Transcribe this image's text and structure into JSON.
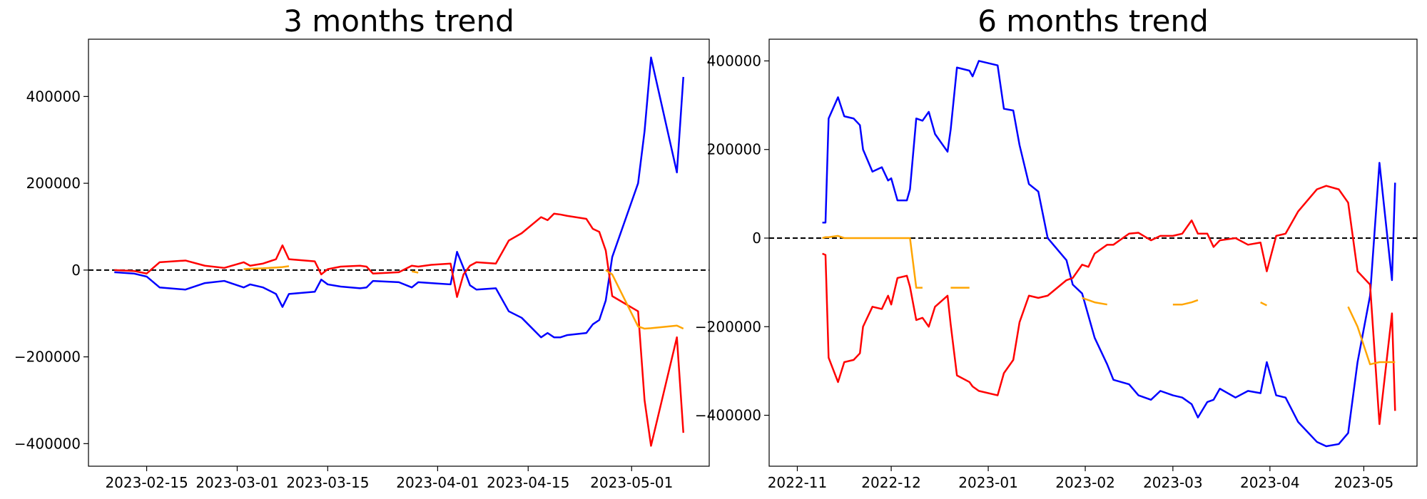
{
  "chart_data": [
    {
      "type": "line",
      "title": "3 months trend",
      "x": [
        "2023-02-10",
        "2023-02-13",
        "2023-02-15",
        "2023-02-17",
        "2023-02-21",
        "2023-02-24",
        "2023-02-27",
        "2023-03-02",
        "2023-03-03",
        "2023-03-05",
        "2023-03-07",
        "2023-03-08",
        "2023-03-09",
        "2023-03-13",
        "2023-03-14",
        "2023-03-15",
        "2023-03-17",
        "2023-03-20",
        "2023-03-21",
        "2023-03-22",
        "2023-03-26",
        "2023-03-28",
        "2023-03-29",
        "2023-03-31",
        "2023-04-03",
        "2023-04-04",
        "2023-04-05",
        "2023-04-06",
        "2023-04-07",
        "2023-04-10",
        "2023-04-12",
        "2023-04-14",
        "2023-04-17",
        "2023-04-18",
        "2023-04-19",
        "2023-04-20",
        "2023-04-21",
        "2023-04-24",
        "2023-04-25",
        "2023-04-26",
        "2023-04-27",
        "2023-04-28",
        "2023-05-02",
        "2023-05-03",
        "2023-05-04",
        "2023-05-08",
        "2023-05-09"
      ],
      "series": [
        {
          "color": "#0000ff",
          "values": [
            -5000,
            -8000,
            -15000,
            -40000,
            -45000,
            -30000,
            -25000,
            -40000,
            -33000,
            -40000,
            -55000,
            -85000,
            -55000,
            -50000,
            -22000,
            -33000,
            -38000,
            -42000,
            -40000,
            -25000,
            -28000,
            -40000,
            -28000,
            -30000,
            -33000,
            42000,
            5000,
            -35000,
            -45000,
            -42000,
            -95000,
            -110000,
            -155000,
            -145000,
            -155000,
            -155000,
            -150000,
            -145000,
            -125000,
            -115000,
            -70000,
            30000,
            200000,
            320000,
            490000,
            225000,
            445000
          ]
        },
        {
          "color": "#ff0000",
          "values": [
            0,
            -2000,
            -8000,
            18000,
            22000,
            10000,
            5000,
            18000,
            10000,
            15000,
            25000,
            57000,
            25000,
            20000,
            -10000,
            2000,
            8000,
            10000,
            8000,
            -8000,
            -5000,
            10000,
            8000,
            12000,
            15000,
            -62000,
            -10000,
            10000,
            18000,
            15000,
            68000,
            85000,
            122000,
            115000,
            130000,
            128000,
            125000,
            118000,
            95000,
            88000,
            45000,
            -60000,
            -95000,
            -300000,
            -405000,
            -155000,
            -375000
          ]
        },
        {
          "color": "#ffa500",
          "values": [
            null,
            null,
            null,
            null,
            null,
            null,
            null,
            2000,
            3000,
            4000,
            6000,
            7000,
            9000,
            null,
            null,
            null,
            null,
            null,
            null,
            null,
            null,
            -3000,
            -6000,
            null,
            null,
            null,
            null,
            null,
            null,
            null,
            null,
            null,
            null,
            null,
            null,
            null,
            null,
            null,
            null,
            null,
            0,
            -10000,
            -130000,
            -135000,
            -134000,
            -128000,
            -135000
          ]
        }
      ],
      "xlim": [
        "2023-02-06",
        "2023-05-13"
      ],
      "ylim": [
        -452000,
        532000
      ],
      "xticks": [
        "2023-02-15",
        "2023-03-01",
        "2023-03-15",
        "2023-04-01",
        "2023-04-15",
        "2023-05-01"
      ],
      "yticks": [
        {
          "value": -400000,
          "label": "−400000"
        },
        {
          "value": -200000,
          "label": "−200000"
        },
        0,
        200000,
        400000
      ],
      "reference_line": 0
    },
    {
      "type": "line",
      "title": "6 months trend",
      "x": [
        "2022-11-09",
        "2022-11-10",
        "2022-11-11",
        "2022-11-14",
        "2022-11-16",
        "2022-11-19",
        "2022-11-21",
        "2022-11-22",
        "2022-11-25",
        "2022-11-28",
        "2022-11-30",
        "2022-12-01",
        "2022-12-03",
        "2022-12-06",
        "2022-12-07",
        "2022-12-09",
        "2022-12-11",
        "2022-12-13",
        "2022-12-15",
        "2022-12-19",
        "2022-12-20",
        "2022-12-22",
        "2022-12-26",
        "2022-12-27",
        "2022-12-29",
        "2023-01-04",
        "2023-01-06",
        "2023-01-09",
        "2023-01-11",
        "2023-01-14",
        "2023-01-17",
        "2023-01-20",
        "2023-01-26",
        "2023-01-28",
        "2023-01-31",
        "2023-02-02",
        "2023-02-04",
        "2023-02-08",
        "2023-02-10",
        "2023-02-15",
        "2023-02-18",
        "2023-02-22",
        "2023-02-25",
        "2023-03-01",
        "2023-03-04",
        "2023-03-07",
        "2023-03-09",
        "2023-03-12",
        "2023-03-14",
        "2023-03-16",
        "2023-03-21",
        "2023-03-25",
        "2023-03-29",
        "2023-03-31",
        "2023-04-03",
        "2023-04-06",
        "2023-04-10",
        "2023-04-16",
        "2023-04-19",
        "2023-04-23",
        "2023-04-26",
        "2023-04-29",
        "2023-05-03",
        "2023-05-06",
        "2023-05-10",
        "2023-05-11"
      ],
      "series": [
        {
          "color": "#0000ff",
          "values": [
            35000,
            35000,
            270000,
            318000,
            275000,
            270000,
            255000,
            200000,
            150000,
            160000,
            130000,
            135000,
            85000,
            85000,
            110000,
            270000,
            265000,
            285000,
            235000,
            195000,
            245000,
            385000,
            378000,
            365000,
            400000,
            390000,
            292000,
            288000,
            210000,
            122000,
            105000,
            0,
            -50000,
            -105000,
            -125000,
            -175000,
            -225000,
            -285000,
            -320000,
            -330000,
            -355000,
            -365000,
            -345000,
            -355000,
            -360000,
            -375000,
            -405000,
            -370000,
            -365000,
            -340000,
            -360000,
            -345000,
            -350000,
            -280000,
            -355000,
            -360000,
            -415000,
            -460000,
            -470000,
            -465000,
            -440000,
            -280000,
            -130000,
            170000,
            -95000,
            125000
          ]
        },
        {
          "color": "#ff0000",
          "values": [
            -35000,
            -38000,
            -270000,
            -325000,
            -280000,
            -275000,
            -260000,
            -200000,
            -155000,
            -160000,
            -130000,
            -150000,
            -90000,
            -85000,
            -110000,
            -185000,
            -180000,
            -200000,
            -155000,
            -130000,
            -195000,
            -310000,
            -325000,
            -335000,
            -345000,
            -355000,
            -305000,
            -275000,
            -190000,
            -130000,
            -135000,
            -130000,
            -95000,
            -90000,
            -60000,
            -65000,
            -35000,
            -15000,
            -15000,
            10000,
            12000,
            -5000,
            5000,
            5000,
            10000,
            40000,
            10000,
            10000,
            -20000,
            -5000,
            0,
            -15000,
            -10000,
            -75000,
            5000,
            10000,
            60000,
            110000,
            118000,
            110000,
            80000,
            -75000,
            -105000,
            -420000,
            -170000,
            -390000
          ]
        },
        {
          "color": "#ffa500",
          "values": [
            0,
            2000,
            2000,
            5000,
            0,
            0,
            0,
            0,
            0,
            0,
            0,
            0,
            0,
            0,
            0,
            -112000,
            -112000,
            null,
            null,
            null,
            -112000,
            -112000,
            -112000,
            null,
            null,
            null,
            null,
            null,
            null,
            null,
            null,
            null,
            null,
            null,
            -135000,
            -140000,
            -145000,
            -150000,
            null,
            null,
            null,
            null,
            null,
            -150000,
            -150000,
            -145000,
            -140000,
            null,
            null,
            null,
            null,
            null,
            -145000,
            -152000,
            null,
            null,
            null,
            null,
            null,
            null,
            -155000,
            -200000,
            -285000,
            -280000,
            -280000,
            -280000
          ]
        }
      ],
      "xlim": [
        "2022-10-23",
        "2023-05-18"
      ],
      "ylim": [
        -515000,
        449000
      ],
      "xticks": [
        {
          "value": "2022-11-01",
          "label": "2022-11"
        },
        {
          "value": "2022-12-01",
          "label": "2022-12"
        },
        {
          "value": "2023-01-01",
          "label": "2023-01"
        },
        {
          "value": "2023-02-01",
          "label": "2023-02"
        },
        {
          "value": "2023-03-01",
          "label": "2023-03"
        },
        {
          "value": "2023-04-01",
          "label": "2023-04"
        },
        {
          "value": "2023-05-01",
          "label": "2023-05"
        }
      ],
      "yticks": [
        {
          "value": -400000,
          "label": "−400000"
        },
        {
          "value": -200000,
          "label": "−200000"
        },
        0,
        200000,
        400000
      ],
      "reference_line": 0
    }
  ]
}
